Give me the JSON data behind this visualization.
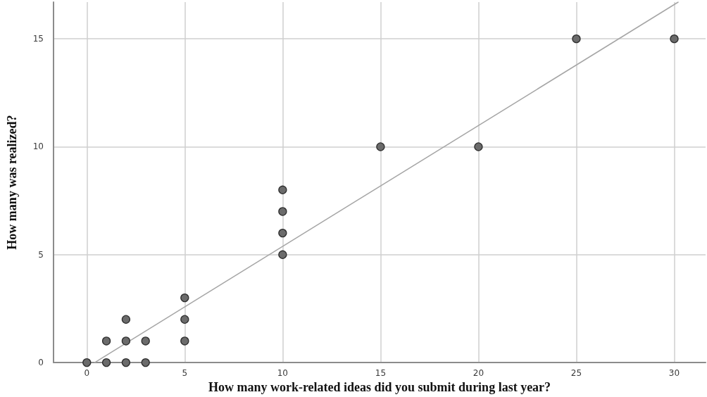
{
  "chart_data": {
    "type": "scatter",
    "xlabel": "How many work-related ideas did you submit during last year?",
    "ylabel": "How many was realized?",
    "xlim": [
      -1.7,
      31.6
    ],
    "xticks": [
      0,
      5,
      10,
      15,
      20,
      25,
      30
    ],
    "ylim": [
      0,
      16.7
    ],
    "yticks": [
      0,
      5,
      10,
      15
    ],
    "grid": true,
    "marker": "circle",
    "series": [
      {
        "color": "#6b6b6b",
        "x": [
          0,
          1,
          1,
          2,
          2,
          2,
          3,
          3,
          5,
          5,
          5,
          10,
          10,
          10,
          10,
          15,
          20,
          25,
          30
        ],
        "values": [
          0,
          0,
          1,
          0,
          1,
          2,
          0,
          1,
          1,
          2,
          3,
          5,
          6,
          7,
          8,
          10,
          10,
          15,
          15
        ]
      },
      {
        "type": "line",
        "color": "#a6a6a6",
        "marker": "none",
        "line_style": "solid",
        "x": [
          0.4,
          30.2
        ],
        "values": [
          0,
          16.7
        ]
      }
    ]
  }
}
